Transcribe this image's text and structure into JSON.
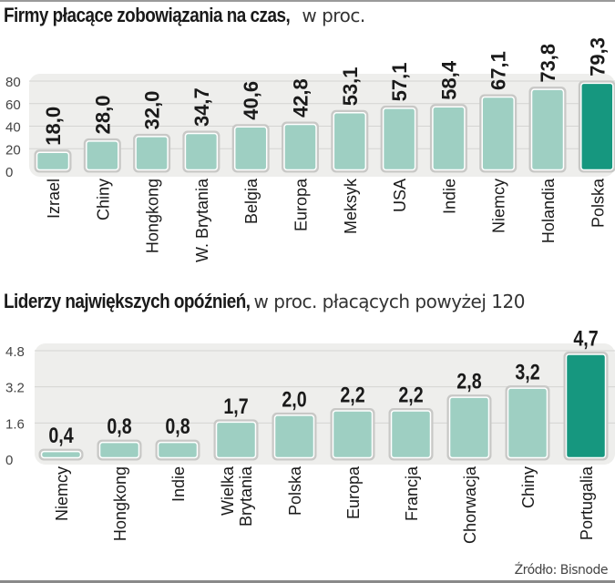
{
  "chart_data": [
    {
      "type": "bar",
      "title": "Firmy płacące zobowiązania na czas,",
      "subtitle": "w proc.",
      "xlabel": "",
      "ylabel": "",
      "categories": [
        "Izrael",
        "Chiny",
        "Hongkong",
        "W. Brytania",
        "Belgia",
        "Europa",
        "Meksyk",
        "USA",
        "Indie",
        "Niemcy",
        "Holandia",
        "Polska"
      ],
      "values": [
        18.0,
        28.0,
        32.0,
        34.7,
        40.6,
        42.8,
        53.1,
        57.1,
        58.4,
        67.1,
        73.8,
        79.3
      ],
      "value_labels": [
        "18,0",
        "28,0",
        "32,0",
        "34,7",
        "40,6",
        "42,8",
        "53,1",
        "57,1",
        "58,4",
        "67,1",
        "73,8",
        "79,3"
      ],
      "highlight": "Polska",
      "yticks": [
        0,
        20,
        40,
        60,
        80
      ],
      "ytick_labels": [
        "0",
        "20",
        "40",
        "60",
        "80"
      ],
      "ylim": [
        0,
        80
      ],
      "grid": true,
      "legend": "none"
    },
    {
      "type": "bar",
      "title": "Liderzy największych opóźnień,",
      "subtitle": "w proc. płacących powyżej 120",
      "xlabel": "",
      "ylabel": "",
      "categories": [
        "Niemcy",
        "Hongkong",
        "Indie",
        "Wielka Brytania",
        "Polska",
        "Europa",
        "Francja",
        "Chorwacja",
        "Chiny",
        "Portugalia"
      ],
      "category_lines": [
        [
          "Niemcy"
        ],
        [
          "Hongkong"
        ],
        [
          "Indie"
        ],
        [
          "Wielka",
          "Brytania"
        ],
        [
          "Polska"
        ],
        [
          "Europa"
        ],
        [
          "Francja"
        ],
        [
          "Chorwacja"
        ],
        [
          "Chiny"
        ],
        [
          "Portugalia"
        ]
      ],
      "values": [
        0.4,
        0.8,
        0.8,
        1.7,
        2.0,
        2.2,
        2.2,
        2.8,
        3.2,
        4.7
      ],
      "value_labels": [
        "0,4",
        "0,8",
        "0,8",
        "1,7",
        "2,0",
        "2,2",
        "2,2",
        "2,8",
        "3,2",
        "4,7"
      ],
      "highlight": "Portugalia",
      "yticks": [
        0,
        1.6,
        3.2,
        4.8
      ],
      "ytick_labels": [
        "0",
        "1.6",
        "3.2",
        "4.8"
      ],
      "ylim": [
        0,
        4.8
      ],
      "grid": true,
      "legend": "none"
    }
  ],
  "colors": {
    "bar": "#9ecfc2",
    "bar_highlight": "#16977f",
    "bar_outline": "#ffffff",
    "plot_bg": "#eeeeec",
    "grid": "#d4d4d2",
    "text": "#1a1a1a",
    "axis_text": "#444444"
  },
  "source": "Źródło: Bisnode"
}
